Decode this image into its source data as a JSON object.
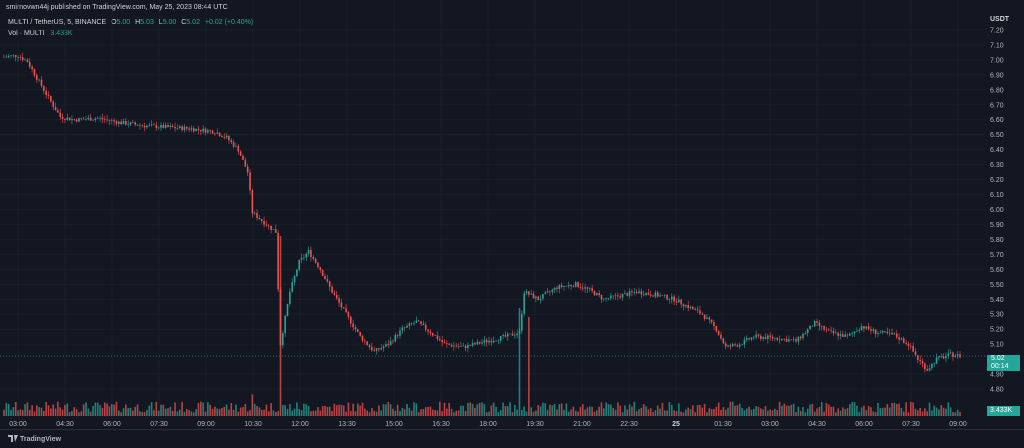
{
  "header": {
    "published": "smirnovwn44j published on TradingView.com, May 25, 2023 08:44 UTC"
  },
  "legend": {
    "symbol": "MULTI / TetherUS, 5, BINANCE",
    "o_key": "O",
    "o_val": "5.00",
    "h_key": "H",
    "h_val": "5.03",
    "l_key": "L",
    "l_val": "5.00",
    "c_key": "C",
    "c_val": "5.02",
    "change": "+0.02 (+0.40%)",
    "vol_label": "Vol · MULTI",
    "vol_val": "3.433K"
  },
  "price_axis": {
    "currency": "USDT",
    "current_price": "5.02",
    "countdown": "00:14",
    "current_volume": "3.433K"
  },
  "footer": {
    "brand": "TradingView"
  },
  "colors": {
    "up": "#26a69a",
    "down": "#ef5350",
    "bg": "#131722",
    "grid": "#1e222d"
  },
  "chart_data": {
    "type": "candlestick",
    "y_ticks": [
      "7.20",
      "7.10",
      "7.00",
      "6.90",
      "6.80",
      "6.70",
      "6.60",
      "6.50",
      "6.40",
      "6.30",
      "6.20",
      "6.10",
      "6.00",
      "5.90",
      "5.80",
      "5.70",
      "5.60",
      "5.50",
      "5.40",
      "5.30",
      "5.20",
      "5.10",
      "4.90",
      "4.80"
    ],
    "ylim": [
      4.78,
      7.24
    ],
    "x_ticks": [
      "03:00",
      "04:30",
      "06:00",
      "07:30",
      "09:00",
      "10:30",
      "12:00",
      "13:30",
      "15:00",
      "16:30",
      "18:00",
      "19:30",
      "21:00",
      "22:30",
      "25",
      "01:30",
      "03:00",
      "04:30",
      "06:00",
      "07:30",
      "09:00"
    ],
    "path": [
      [
        0,
        7.02
      ],
      [
        6,
        7.03
      ],
      [
        10,
        6.99
      ],
      [
        14,
        6.88
      ],
      [
        20,
        6.72
      ],
      [
        24,
        6.62
      ],
      [
        30,
        6.6
      ],
      [
        40,
        6.61
      ],
      [
        50,
        6.58
      ],
      [
        60,
        6.56
      ],
      [
        70,
        6.55
      ],
      [
        80,
        6.54
      ],
      [
        90,
        6.52
      ],
      [
        95,
        6.48
      ],
      [
        100,
        6.4
      ],
      [
        104,
        6.25
      ],
      [
        106,
        5.98
      ],
      [
        112,
        5.9
      ],
      [
        116,
        5.85
      ],
      [
        118,
        5.1
      ],
      [
        122,
        5.45
      ],
      [
        126,
        5.65
      ],
      [
        130,
        5.72
      ],
      [
        135,
        5.6
      ],
      [
        140,
        5.45
      ],
      [
        146,
        5.3
      ],
      [
        152,
        5.15
      ],
      [
        158,
        5.05
      ],
      [
        164,
        5.1
      ],
      [
        170,
        5.2
      ],
      [
        176,
        5.25
      ],
      [
        182,
        5.18
      ],
      [
        188,
        5.1
      ],
      [
        196,
        5.08
      ],
      [
        206,
        5.12
      ],
      [
        214,
        5.15
      ],
      [
        220,
        5.18
      ],
      [
        222,
        5.45
      ],
      [
        228,
        5.4
      ],
      [
        236,
        5.48
      ],
      [
        244,
        5.5
      ],
      [
        250,
        5.46
      ],
      [
        256,
        5.4
      ],
      [
        262,
        5.42
      ],
      [
        270,
        5.45
      ],
      [
        278,
        5.43
      ],
      [
        286,
        5.4
      ],
      [
        292,
        5.35
      ],
      [
        298,
        5.3
      ],
      [
        304,
        5.2
      ],
      [
        308,
        5.08
      ],
      [
        314,
        5.1
      ],
      [
        320,
        5.15
      ],
      [
        330,
        5.14
      ],
      [
        338,
        5.12
      ],
      [
        346,
        5.24
      ],
      [
        352,
        5.18
      ],
      [
        360,
        5.15
      ],
      [
        366,
        5.22
      ],
      [
        372,
        5.18
      ],
      [
        380,
        5.16
      ],
      [
        386,
        5.1
      ],
      [
        390,
        5.0
      ],
      [
        394,
        4.93
      ],
      [
        398,
        5.0
      ],
      [
        404,
        5.03
      ],
      [
        408,
        5.02
      ]
    ],
    "x_domain": [
      0,
      408
    ],
    "volume_spikes": [
      {
        "x": 118,
        "level": 1.0,
        "up": false
      },
      {
        "x": 220,
        "level": 0.6,
        "up": true
      },
      {
        "x": 224,
        "level": 0.55,
        "up": true
      },
      {
        "x": 106,
        "level": 0.12,
        "up": false
      }
    ]
  }
}
